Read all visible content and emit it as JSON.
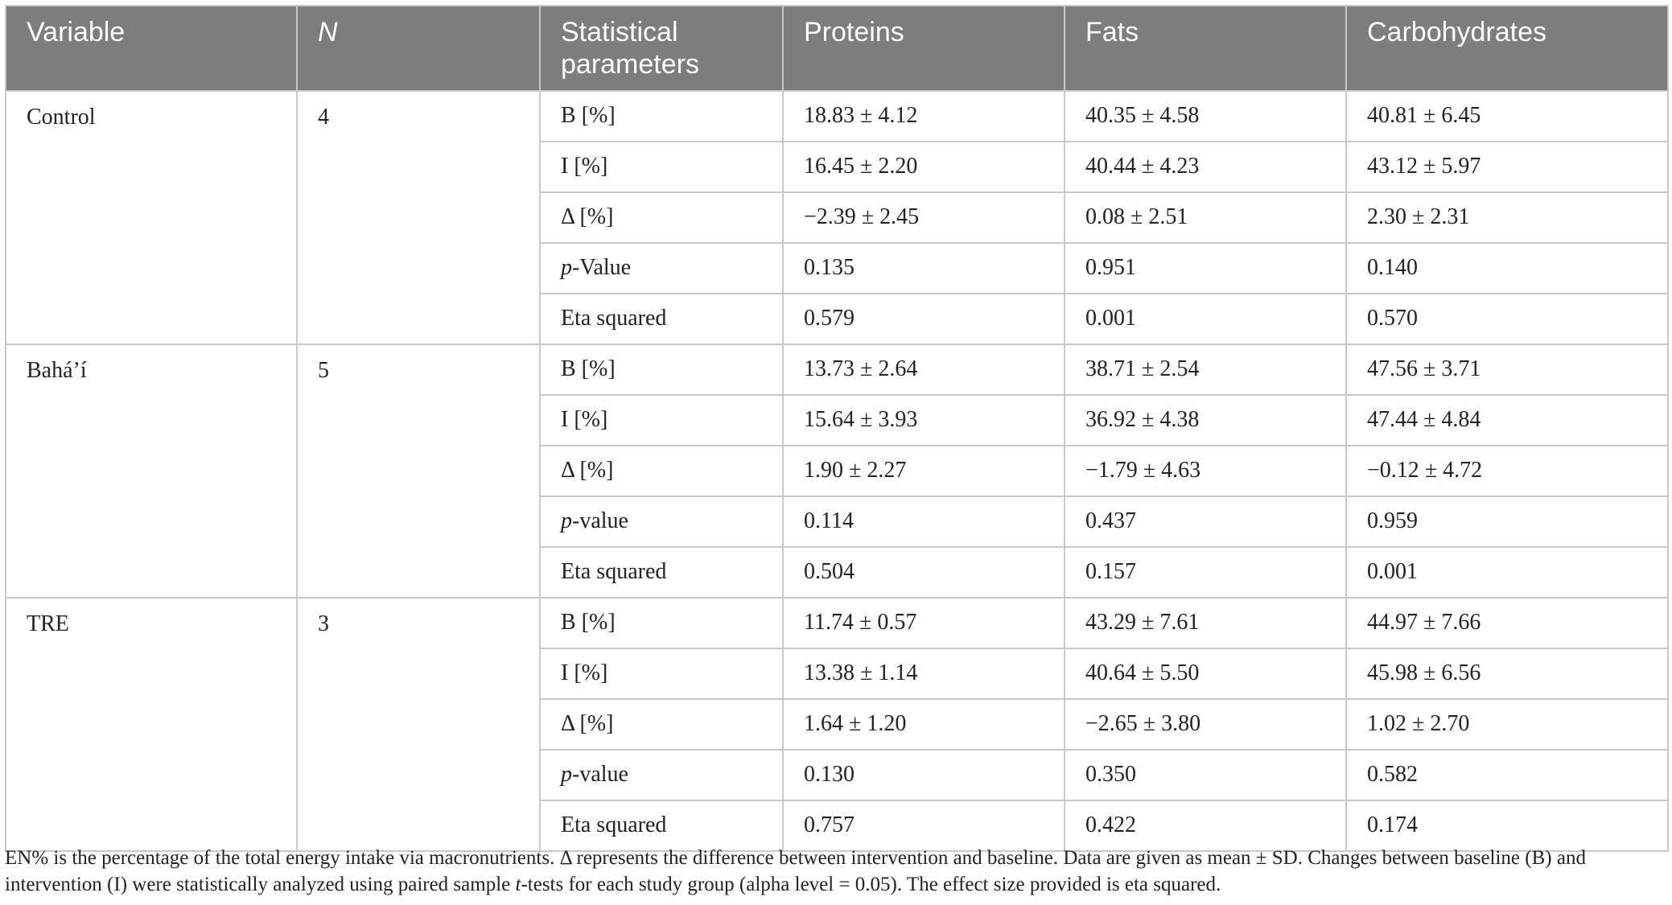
{
  "table": {
    "headers": {
      "variable": "Variable",
      "n": "N",
      "stat_line1": "Statistical",
      "stat_line2": "parameters",
      "proteins": "Proteins",
      "fats": "Fats",
      "carbohydrates": "Carbohydrates"
    },
    "groups": [
      {
        "name": "Control",
        "n": "4",
        "rows": [
          {
            "param": "B [%]",
            "proteins": "18.83 ± 4.12",
            "fats": "40.35 ± 4.58",
            "carbs": "40.81 ± 6.45"
          },
          {
            "param": "I [%]",
            "proteins": "16.45 ± 2.20",
            "fats": "40.44 ± 4.23",
            "carbs": "43.12 ± 5.97"
          },
          {
            "param": "Δ [%]",
            "proteins": "−2.39 ± 2.45",
            "fats": "0.08 ± 2.51",
            "carbs": "2.30 ± 2.31"
          },
          {
            "param_italic": "p",
            "param": "-Value",
            "proteins": "0.135",
            "fats": "0.951",
            "carbs": "0.140"
          },
          {
            "param": "Eta squared",
            "proteins": "0.579",
            "fats": "0.001",
            "carbs": "0.570"
          }
        ]
      },
      {
        "name": "Bahá’í",
        "n": "5",
        "rows": [
          {
            "param": "B [%]",
            "proteins": "13.73 ± 2.64",
            "fats": "38.71 ± 2.54",
            "carbs": "47.56 ± 3.71"
          },
          {
            "param": "I [%]",
            "proteins": "15.64 ± 3.93",
            "fats": "36.92 ± 4.38",
            "carbs": "47.44 ± 4.84"
          },
          {
            "param": "Δ [%]",
            "proteins": "1.90 ± 2.27",
            "fats": "−1.79 ± 4.63",
            "carbs": "−0.12 ± 4.72"
          },
          {
            "param_italic": "p",
            "param": "-value",
            "proteins": "0.114",
            "fats": "0.437",
            "carbs": "0.959"
          },
          {
            "param": "Eta squared",
            "proteins": "0.504",
            "fats": "0.157",
            "carbs": "0.001"
          }
        ]
      },
      {
        "name": "TRE",
        "n": "3",
        "rows": [
          {
            "param": "B [%]",
            "proteins": "11.74 ± 0.57",
            "fats": "43.29 ± 7.61",
            "carbs": "44.97 ± 7.66"
          },
          {
            "param": "I [%]",
            "proteins": "13.38 ± 1.14",
            "fats": "40.64 ± 5.50",
            "carbs": "45.98 ± 6.56"
          },
          {
            "param": "Δ [%]",
            "proteins": "1.64 ± 1.20",
            "fats": "−2.65 ± 3.80",
            "carbs": "1.02 ± 2.70"
          },
          {
            "param_italic": "p",
            "param": "-value",
            "proteins": "0.130",
            "fats": "0.350",
            "carbs": "0.582"
          },
          {
            "param": "Eta squared",
            "proteins": "0.757",
            "fats": "0.422",
            "carbs": "0.174"
          }
        ]
      }
    ]
  },
  "footnote": {
    "part1": "EN% is the percentage of the total energy intake via macronutrients. Δ represents the difference between intervention and baseline. Data are given as mean ± SD. Changes between baseline (B) and intervention (I) were statistically analyzed using paired sample ",
    "italic": "t",
    "part2": "-tests for each study group (alpha level = 0.05). The effect size provided is eta squared."
  }
}
